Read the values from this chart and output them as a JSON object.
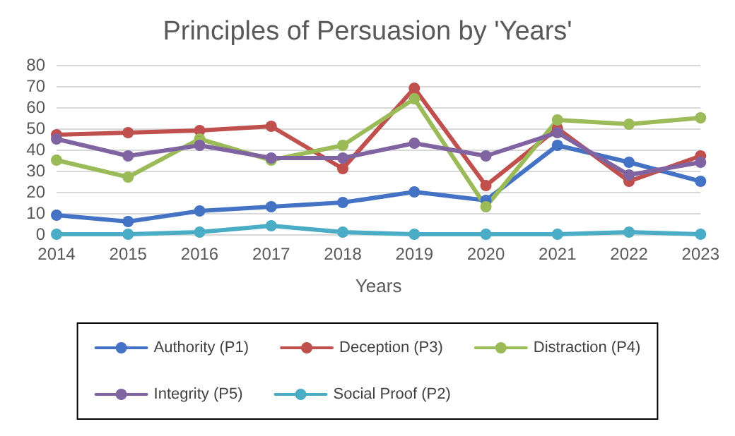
{
  "chart_data": {
    "type": "line",
    "title": "Principles of Persuasion by 'Years'",
    "xlabel": "Years",
    "categories": [
      "2014",
      "2015",
      "2016",
      "2017",
      "2018",
      "2019",
      "2020",
      "2021",
      "2022",
      "2023"
    ],
    "series": [
      {
        "name": "Authority (P1)",
        "color": "#4472c4",
        "values": [
          9,
          6,
          11,
          13,
          15,
          20,
          16,
          42,
          34,
          25
        ]
      },
      {
        "name": "Deception (P3)",
        "color": "#c0504d",
        "values": [
          47,
          48,
          49,
          51,
          31,
          69,
          23,
          50,
          25,
          37
        ]
      },
      {
        "name": "Distraction (P4)",
        "color": "#9bbb59",
        "values": [
          35,
          27,
          45,
          35,
          42,
          64,
          13,
          54,
          52,
          55
        ]
      },
      {
        "name": "Integrity (P5)",
        "color": "#8064a2",
        "values": [
          45,
          37,
          42,
          36,
          36,
          43,
          37,
          48,
          28,
          34
        ]
      },
      {
        "name": "Social Proof (P2)",
        "color": "#4bacc6",
        "values": [
          0,
          0,
          1,
          4,
          1,
          0,
          0,
          0,
          1,
          0
        ]
      }
    ],
    "ylim": [
      0,
      80
    ],
    "yticks": [
      0,
      10,
      20,
      30,
      40,
      50,
      60,
      70,
      80
    ],
    "grid": "y",
    "legend": "bottom",
    "marker": "circle",
    "line_style": "solid"
  }
}
